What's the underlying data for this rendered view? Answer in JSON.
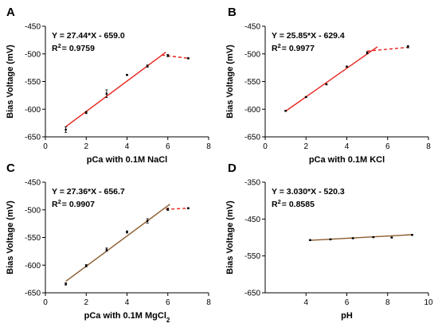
{
  "chart_data": [
    {
      "type": "scatter",
      "panel_label": "A",
      "xlabel_parts": [
        {
          "t": "pCa with 0.1M NaCl"
        }
      ],
      "ylabel": "Bias Voltage (mV)",
      "xlim": [
        0,
        8
      ],
      "ylim": [
        -650,
        -450
      ],
      "xticks": [
        0,
        2,
        4,
        6,
        8
      ],
      "yticks": [
        -450,
        -500,
        -550,
        -600,
        -650
      ],
      "equation": "Y = 27.44*X - 659.0",
      "r2_prefix": "R",
      "r2_sup": "2",
      "r2_value": "= 0.9759",
      "points": [
        {
          "x": 1,
          "y": -637,
          "err": 5
        },
        {
          "x": 2,
          "y": -606,
          "err": 2
        },
        {
          "x": 3,
          "y": -572,
          "err": 7
        },
        {
          "x": 4,
          "y": -538,
          "err": 1
        },
        {
          "x": 5,
          "y": -522,
          "err": 2
        },
        {
          "x": 6,
          "y": -503,
          "err": 2
        },
        {
          "x": 7,
          "y": -508,
          "err": 1
        }
      ],
      "fit_line": {
        "x": [
          1,
          5.9
        ],
        "y": [
          -631.6,
          -497.1
        ],
        "color": "#e8221b"
      },
      "dashed_line": {
        "x": [
          5.7,
          7
        ],
        "y": [
          -502,
          -508
        ],
        "color": "#e8221b"
      }
    },
    {
      "type": "scatter",
      "panel_label": "B",
      "xlabel_parts": [
        {
          "t": "pCa with 0.1M KCl"
        }
      ],
      "ylabel": "Bias Voltage (mV)",
      "xlim": [
        0,
        8
      ],
      "ylim": [
        -650,
        -450
      ],
      "xticks": [
        0,
        2,
        4,
        6,
        8
      ],
      "yticks": [
        -450,
        -500,
        -550,
        -600,
        -650
      ],
      "equation": "Y = 25.85*X - 629.4",
      "r2_prefix": "R",
      "r2_sup": "2",
      "r2_value": "= 0.9977",
      "points": [
        {
          "x": 1,
          "y": -603,
          "err": 1
        },
        {
          "x": 2,
          "y": -578,
          "err": 1
        },
        {
          "x": 3,
          "y": -555,
          "err": 1
        },
        {
          "x": 4,
          "y": -523,
          "err": 1
        },
        {
          "x": 5,
          "y": -498,
          "err": 2
        },
        {
          "x": 7,
          "y": -487,
          "err": 2
        }
      ],
      "fit_line": {
        "x": [
          1,
          5.5
        ],
        "y": [
          -603.6,
          -487.2
        ],
        "color": "#e8221b"
      },
      "dashed_line": {
        "x": [
          5,
          7
        ],
        "y": [
          -495,
          -488
        ],
        "color": "#e8221b"
      }
    },
    {
      "type": "scatter",
      "panel_label": "C",
      "xlabel_parts": [
        {
          "t": "pCa with 0.1M MgCl"
        },
        {
          "t": "2",
          "sub": true
        }
      ],
      "ylabel": "Bias Voltage (mV)",
      "xlim": [
        0,
        8
      ],
      "ylim": [
        -650,
        -450
      ],
      "xticks": [
        0,
        2,
        4,
        6,
        8
      ],
      "yticks": [
        -450,
        -500,
        -550,
        -600,
        -650
      ],
      "equation": "Y = 27.36*X - 656.7",
      "r2_prefix": "R",
      "r2_sup": "2",
      "r2_value": "= 0.9907",
      "points": [
        {
          "x": 1,
          "y": -634,
          "err": 2
        },
        {
          "x": 2,
          "y": -601,
          "err": 2
        },
        {
          "x": 3,
          "y": -572,
          "err": 3
        },
        {
          "x": 4,
          "y": -540,
          "err": 2
        },
        {
          "x": 5,
          "y": -520,
          "err": 4
        },
        {
          "x": 6,
          "y": -499,
          "err": 2
        },
        {
          "x": 7,
          "y": -497,
          "err": 1
        }
      ],
      "fit_line": {
        "x": [
          1,
          6.1
        ],
        "y": [
          -629.3,
          -489.8
        ],
        "color": "#8b5a2b"
      },
      "dashed_line": {
        "x": [
          5.9,
          7
        ],
        "y": [
          -499,
          -497
        ],
        "color": "#e8221b"
      }
    },
    {
      "type": "scatter",
      "panel_label": "D",
      "xlabel_parts": [
        {
          "t": "pH"
        }
      ],
      "ylabel": "Bias Voltage (mV)",
      "xlim": [
        2,
        10
      ],
      "ylim": [
        -650,
        -350
      ],
      "xticks": [
        4,
        6,
        8,
        10
      ],
      "yticks": [
        -350,
        -450,
        -550,
        -650
      ],
      "equation": "Y = 3.030*X - 520.3",
      "r2_prefix": "R",
      "r2_sup": "2",
      "r2_value": "= 0.8585",
      "points": [
        {
          "x": 4.2,
          "y": -507,
          "err": 1
        },
        {
          "x": 5.2,
          "y": -505,
          "err": 1
        },
        {
          "x": 6.3,
          "y": -502,
          "err": 1
        },
        {
          "x": 7.3,
          "y": -499,
          "err": 1
        },
        {
          "x": 8.2,
          "y": -500,
          "err": 1
        },
        {
          "x": 9.2,
          "y": -493,
          "err": 1
        }
      ],
      "fit_line": {
        "x": [
          4.2,
          9.2
        ],
        "y": [
          -507.6,
          -492.4
        ],
        "color": "#8b5a2b"
      },
      "dashed_line": null
    }
  ]
}
